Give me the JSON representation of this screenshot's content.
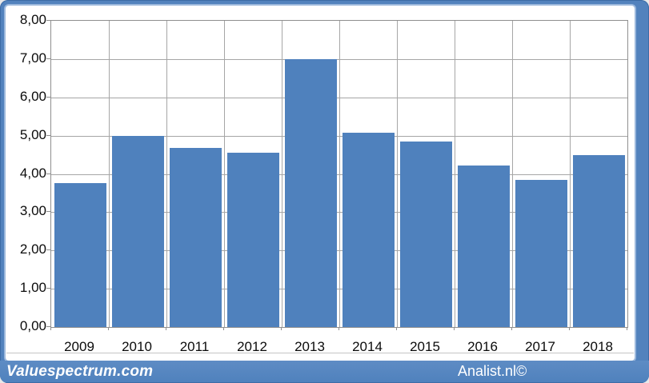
{
  "chart_data": {
    "type": "bar",
    "title": "",
    "xlabel": "",
    "ylabel": "",
    "categories": [
      "2009",
      "2010",
      "2011",
      "2012",
      "2013",
      "2014",
      "2015",
      "2016",
      "2017",
      "2018"
    ],
    "values": [
      3.76,
      5.0,
      4.68,
      4.56,
      7.0,
      5.08,
      4.84,
      4.22,
      3.84,
      4.5
    ],
    "ylim": [
      0,
      8
    ],
    "ytick_step": 1,
    "ytick_labels": [
      "0,00",
      "1,00",
      "2,00",
      "3,00",
      "4,00",
      "5,00",
      "6,00",
      "7,00",
      "8,00"
    ],
    "grid": true,
    "legend": "none",
    "bar_color": "#4f81bd",
    "grid_color": "#a6a6a6",
    "axis_color": "#8f8f8f"
  },
  "footer": {
    "left_text": "Valuespectrum.com",
    "right_text": "Analist.nl©"
  },
  "colors": {
    "frame": "#5282bd",
    "panel": "#ffffff",
    "strip": "#4f81bd",
    "watermark_text": "#ffffff",
    "label_text": "#0b0b0b"
  }
}
